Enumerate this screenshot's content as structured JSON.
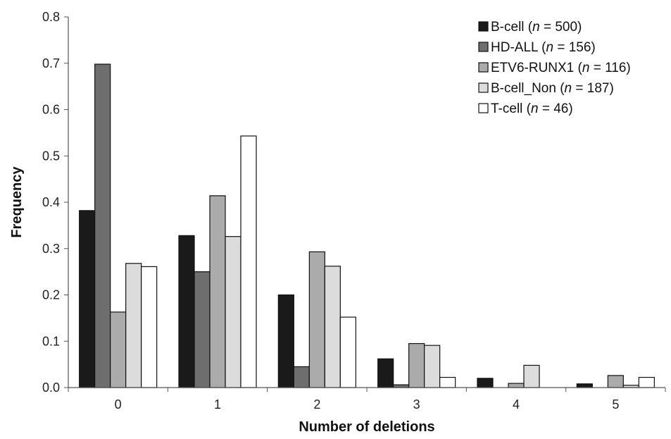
{
  "chart_data": {
    "type": "bar",
    "title": "",
    "xlabel": "Number of deletions",
    "ylabel": "Frequency",
    "categories": [
      "0",
      "1",
      "2",
      "3",
      "4",
      "5"
    ],
    "ylim": [
      0,
      0.8
    ],
    "yticks": [
      "0.0",
      "0.1",
      "0.2",
      "0.3",
      "0.4",
      "0.5",
      "0.6",
      "0.7",
      "0.8"
    ],
    "grid": false,
    "legend_position": "top-right",
    "series": [
      {
        "name": "B-cell",
        "n_label": "n",
        "n_value": "= 500)",
        "color": "#1a1a1a",
        "values": [
          0.382,
          0.328,
          0.2,
          0.062,
          0.02,
          0.008
        ]
      },
      {
        "name": "HD-ALL",
        "n_label": "n",
        "n_value": "= 156)",
        "color": "#6e6e6e",
        "values": [
          0.698,
          0.25,
          0.045,
          0.006,
          0.0,
          0.0
        ]
      },
      {
        "name": "ETV6-RUNX1",
        "n_label": "n",
        "n_value": "= 116)",
        "color": "#ababab",
        "values": [
          0.163,
          0.414,
          0.293,
          0.095,
          0.009,
          0.026
        ]
      },
      {
        "name": "B-cell_Non",
        "n_label": "n",
        "n_value": "= 187)",
        "color": "#dcdcdc",
        "values": [
          0.268,
          0.326,
          0.262,
          0.091,
          0.048,
          0.005
        ]
      },
      {
        "name": "T-cell",
        "n_label": "n",
        "n_value": "= 46)",
        "color": "#ffffff",
        "values": [
          0.261,
          0.543,
          0.152,
          0.022,
          0.0,
          0.022
        ]
      }
    ]
  }
}
